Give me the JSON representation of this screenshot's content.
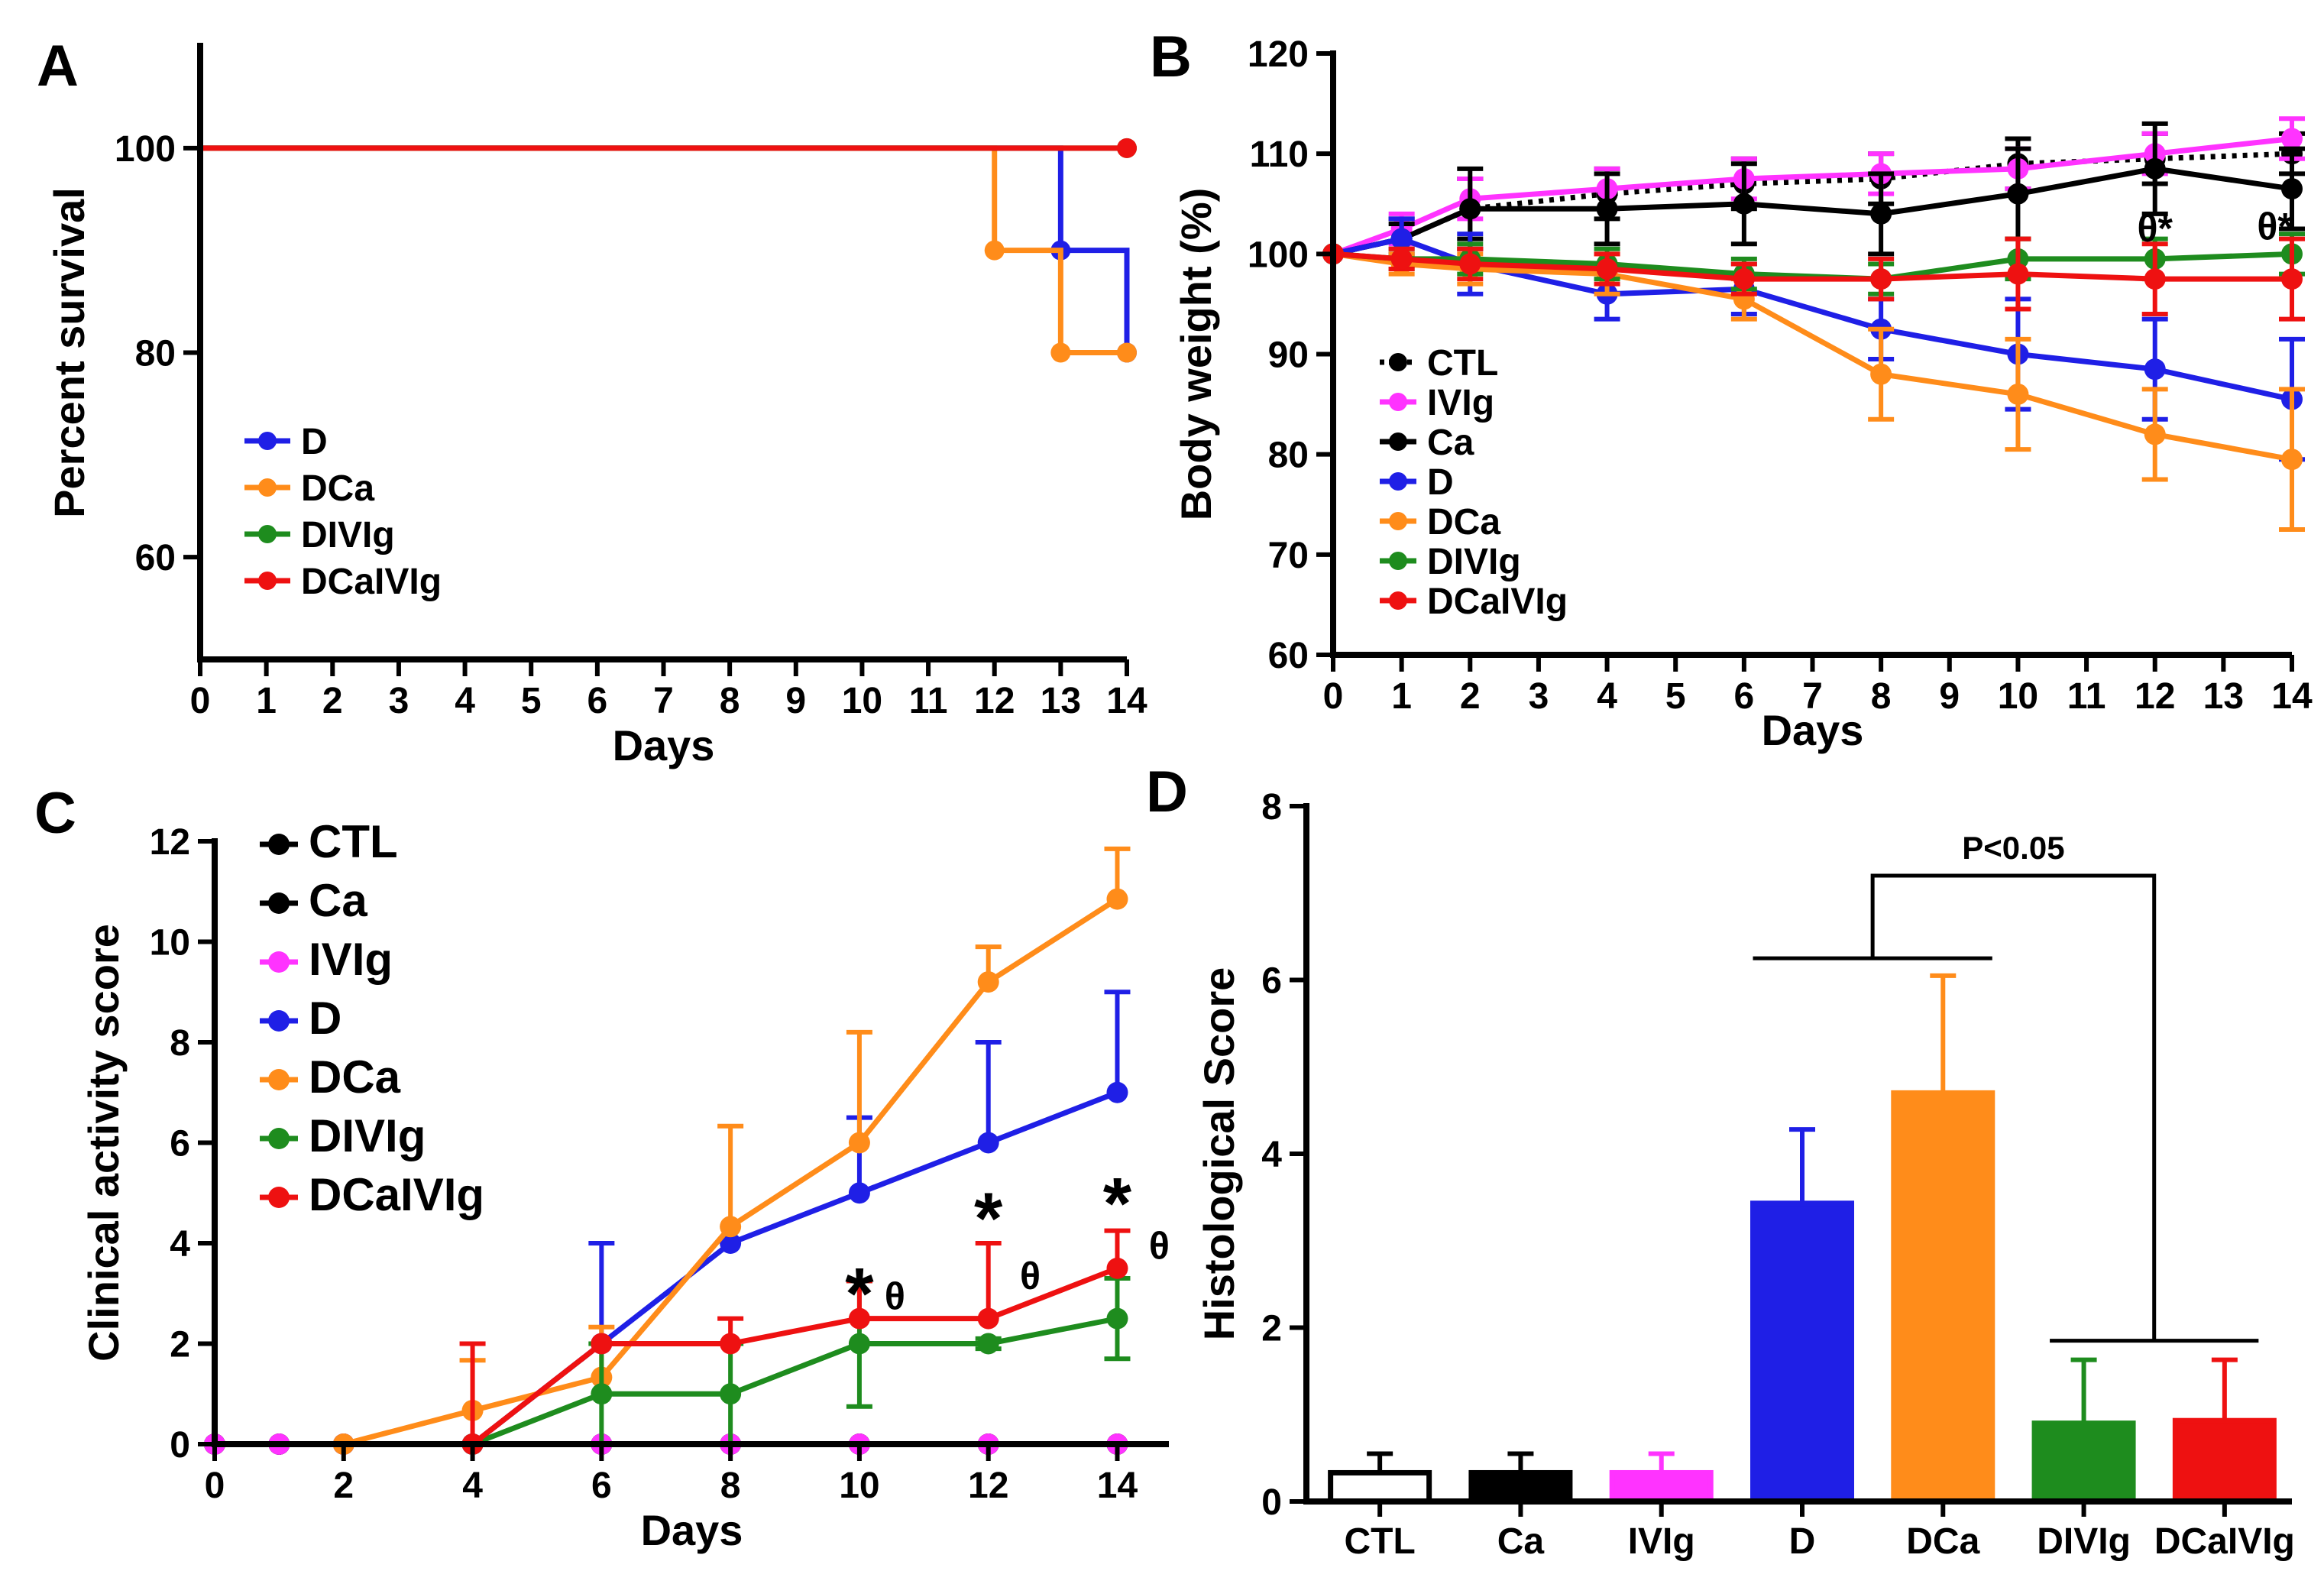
{
  "figure": {
    "panel_labels": [
      "A",
      "B",
      "C",
      "D"
    ]
  },
  "chart_data": [
    {
      "panel": "A",
      "type": "line",
      "step": true,
      "title": "",
      "xlabel": "Days",
      "ylabel": "Percent survival",
      "xlim": [
        0,
        14
      ],
      "ylim": [
        50,
        110
      ],
      "xticks": [
        "0",
        "1",
        "2",
        "3",
        "4",
        "5",
        "6",
        "7",
        "8",
        "9",
        "10",
        "11",
        "12",
        "13",
        "14"
      ],
      "yticks": [
        "60",
        "80",
        "100"
      ],
      "legend_position": "bottom-left",
      "series": [
        {
          "name": "D",
          "color": "#1f1fe6",
          "x": [
            0,
            13,
            14
          ],
          "values": [
            100,
            90,
            80
          ]
        },
        {
          "name": "DCa",
          "color": "#ff8c1a",
          "x": [
            0,
            12,
            13,
            14
          ],
          "values": [
            100,
            90,
            80,
            80
          ]
        },
        {
          "name": "DIVIg",
          "color": "#1e8c1e",
          "x": [
            0,
            14
          ],
          "values": [
            100,
            100
          ]
        },
        {
          "name": "DCaIVIg",
          "color": "#ee1111",
          "x": [
            0,
            14
          ],
          "values": [
            100,
            100
          ]
        }
      ]
    },
    {
      "panel": "B",
      "type": "line",
      "title": "",
      "xlabel": "Days",
      "ylabel": "Body weight (%)",
      "xlim": [
        0,
        14
      ],
      "ylim": [
        60,
        120
      ],
      "xticks": [
        "0",
        "1",
        "2",
        "3",
        "4",
        "5",
        "6",
        "7",
        "8",
        "9",
        "10",
        "11",
        "12",
        "13",
        "14"
      ],
      "yticks": [
        "60",
        "70",
        "80",
        "90",
        "100",
        "110",
        "120"
      ],
      "legend_position": "bottom-left",
      "annotations": [
        {
          "text": "θ*",
          "x": 12,
          "y": 102.3
        },
        {
          "text": "θ*",
          "x": 13.75,
          "y": 102.5
        }
      ],
      "series": [
        {
          "name": "CTL",
          "color": "#000000",
          "dashed": true,
          "x": [
            0,
            1,
            2,
            4,
            6,
            8,
            10,
            12,
            14
          ],
          "values": [
            100,
            101.5,
            104.5,
            106,
            107,
            107.5,
            109,
            109.5,
            110
          ],
          "err": [
            0,
            2,
            3,
            2.5,
            2.5,
            2.5,
            2.5,
            2.5,
            2
          ]
        },
        {
          "name": "IVIg",
          "color": "#ff33ff",
          "x": [
            0,
            1,
            2,
            4,
            6,
            8,
            10,
            12,
            14
          ],
          "values": [
            100,
            102.5,
            105.5,
            106.5,
            107.5,
            108,
            108.5,
            110,
            111.5
          ],
          "err": [
            0,
            1.5,
            2,
            2,
            2,
            2,
            2,
            2,
            2
          ]
        },
        {
          "name": "Ca",
          "color": "#000000",
          "x": [
            0,
            1,
            2,
            4,
            6,
            8,
            10,
            12,
            14
          ],
          "values": [
            100,
            101.5,
            104.5,
            104.5,
            105,
            104,
            106,
            108.5,
            106.5
          ],
          "err": [
            0,
            1.5,
            4,
            3.5,
            4,
            4,
            4.5,
            4.5,
            4
          ]
        },
        {
          "name": "D",
          "color": "#1f1fe6",
          "x": [
            0,
            1,
            2,
            4,
            6,
            8,
            10,
            12,
            14
          ],
          "values": [
            100,
            101.5,
            99,
            96,
            96.5,
            92.5,
            90,
            88.5,
            85.5
          ],
          "err": [
            0,
            2,
            3,
            2.5,
            2.5,
            3,
            5.5,
            5,
            6
          ]
        },
        {
          "name": "DCa",
          "color": "#ff8c1a",
          "x": [
            0,
            1,
            2,
            4,
            6,
            8,
            10,
            12,
            14
          ],
          "values": [
            100,
            99,
            98.5,
            98,
            95.5,
            88,
            86,
            82,
            79.5
          ],
          "err": [
            0,
            1,
            1.5,
            2,
            2,
            4.5,
            5.5,
            4.5,
            7
          ]
        },
        {
          "name": "DIVIg",
          "color": "#1e8c1e",
          "x": [
            0,
            1,
            2,
            4,
            6,
            8,
            10,
            12,
            14
          ],
          "values": [
            100,
            99.5,
            99.5,
            99,
            98,
            97.5,
            99.5,
            99.5,
            100
          ],
          "err": [
            0,
            1,
            1.5,
            1.5,
            1.5,
            1.5,
            2,
            2,
            2
          ]
        },
        {
          "name": "DCaIVIg",
          "color": "#ee1111",
          "x": [
            0,
            1,
            2,
            4,
            6,
            8,
            10,
            12,
            14
          ],
          "values": [
            100,
            99.5,
            99,
            98.5,
            97.5,
            97.5,
            98,
            97.5,
            97.5
          ],
          "err": [
            0,
            1,
            1.5,
            1.5,
            1.5,
            2,
            3.5,
            3.5,
            4
          ]
        }
      ]
    },
    {
      "panel": "C",
      "type": "line",
      "title": "",
      "xlabel": "Days",
      "ylabel": "Clinical activity score",
      "xlim": [
        0,
        14.8
      ],
      "ylim": [
        0,
        12
      ],
      "xticks": [
        "0",
        "2",
        "4",
        "6",
        "8",
        "10",
        "12",
        "14"
      ],
      "yticks": [
        "0",
        "2",
        "4",
        "6",
        "8",
        "10",
        "12"
      ],
      "legend_position": "top-left",
      "annotations": [
        {
          "text": "*",
          "x": 10,
          "y": 3.1,
          "size": "large"
        },
        {
          "text": "θ",
          "x": 10.55,
          "y": 2.9,
          "size": "small"
        },
        {
          "text": "*",
          "x": 12,
          "y": 4.6,
          "size": "large"
        },
        {
          "text": "θ",
          "x": 12.65,
          "y": 3.3,
          "size": "small"
        },
        {
          "text": "*",
          "x": 14,
          "y": 4.9,
          "size": "large"
        },
        {
          "text": "θ",
          "x": 14.65,
          "y": 3.9,
          "size": "small"
        }
      ],
      "series": [
        {
          "name": "CTL",
          "color": "#000000",
          "x": [
            0,
            1,
            2,
            4,
            6,
            8,
            10,
            12,
            14
          ],
          "values": [
            0,
            0,
            0,
            0,
            0,
            0,
            0,
            0,
            0
          ],
          "err": [
            0,
            0,
            0,
            0,
            0,
            0,
            0,
            0,
            0
          ]
        },
        {
          "name": "Ca",
          "color": "#000000",
          "x": [
            0,
            1,
            2,
            4,
            6,
            8,
            10,
            12,
            14
          ],
          "values": [
            0,
            0,
            0,
            0,
            0,
            0,
            0,
            0,
            0
          ],
          "err": [
            0,
            0,
            0,
            0,
            0,
            0,
            0,
            0,
            0
          ]
        },
        {
          "name": "IVIg",
          "color": "#ff33ff",
          "x": [
            0,
            1,
            2,
            4,
            6,
            8,
            10,
            12,
            14
          ],
          "values": [
            0,
            0,
            0,
            0,
            0,
            0,
            0,
            0,
            0
          ],
          "err": [
            0,
            0,
            0,
            0,
            0,
            0,
            0,
            0,
            0
          ]
        },
        {
          "name": "D",
          "color": "#1f1fe6",
          "x": [
            4,
            6,
            8,
            10,
            12,
            14
          ],
          "values": [
            0,
            2,
            4,
            5,
            6,
            7
          ],
          "err": [
            0,
            2,
            0,
            1.5,
            2,
            2
          ],
          "err_dir": "up"
        },
        {
          "name": "DCa",
          "color": "#ff8c1a",
          "x": [
            2,
            4,
            6,
            8,
            10,
            12,
            14
          ],
          "values": [
            0,
            0.67,
            1.33,
            4.33,
            6,
            9.2,
            10.85
          ],
          "err": [
            0,
            1,
            1,
            2,
            2.2,
            0.7,
            1
          ],
          "err_dir": "up"
        },
        {
          "name": "DIVIg",
          "color": "#1e8c1e",
          "x": [
            4,
            6,
            8,
            10,
            12,
            14
          ],
          "values": [
            0,
            1,
            1,
            2,
            2,
            2.5
          ],
          "err": [
            0,
            1,
            1,
            1.25,
            0.1,
            0.8
          ],
          "err_dir": "both"
        },
        {
          "name": "DCaIVIg",
          "color": "#ee1111",
          "x": [
            4,
            6,
            8,
            10,
            12,
            14
          ],
          "values": [
            0,
            2,
            2,
            2.5,
            2.5,
            3.5
          ],
          "err": [
            2,
            0,
            0.5,
            0.75,
            1.5,
            0.75
          ],
          "err_dir": "up"
        }
      ]
    },
    {
      "panel": "D",
      "type": "bar",
      "title": "",
      "xlabel": "",
      "ylabel": "Histological Score",
      "ylim": [
        0,
        8
      ],
      "yticks": [
        "0",
        "2",
        "4",
        "6",
        "8"
      ],
      "categories": [
        "CTL",
        "Ca",
        "IVIg",
        "D",
        "DCa",
        "DIVIg",
        "DCaIVIg"
      ],
      "values": [
        0.33,
        0.33,
        0.33,
        3.43,
        4.7,
        0.9,
        0.93
      ],
      "err": [
        0.22,
        0.22,
        0.22,
        0.85,
        1.35,
        0.73,
        0.7
      ],
      "fill_colors": [
        "#ffffff",
        "#000000",
        "#ff33ff",
        "#1f1fe6",
        "#ff8c1a",
        "#1e8c1e",
        "#ee1111"
      ],
      "edge_colors": [
        "#000000",
        "#000000",
        "#ff33ff",
        "#1f1fe6",
        "#ff8c1a",
        "#1e8c1e",
        "#ee1111"
      ],
      "significance": {
        "text": "P<0.05",
        "group1": [
          "D",
          "DCa"
        ],
        "group2": [
          "DIVIg",
          "DCaIVIg"
        ]
      }
    }
  ]
}
